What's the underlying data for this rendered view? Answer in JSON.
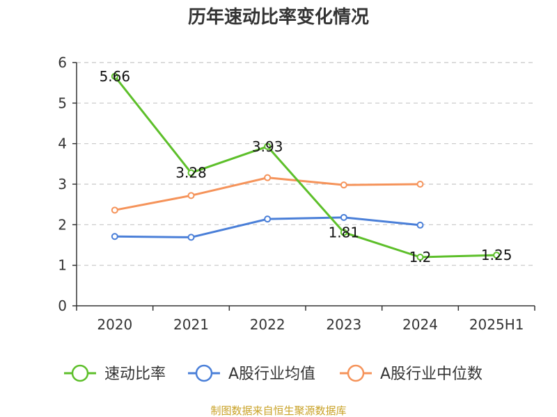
{
  "chart_data": {
    "type": "line",
    "title": "历年速动比率变化情况",
    "categories": [
      "2020",
      "2021",
      "2022",
      "2023",
      "2024",
      "2025H1"
    ],
    "ylim": [
      0,
      6
    ],
    "yticks": [
      0,
      1,
      2,
      3,
      4,
      5,
      6
    ],
    "grid": true,
    "legend_position": "bottom",
    "series": [
      {
        "name": "速动比率",
        "color": "#5dbf2a",
        "values": [
          5.66,
          3.28,
          3.93,
          1.81,
          1.2,
          1.25
        ],
        "labels": [
          "5.66",
          "3.28",
          "3.93",
          "1.81",
          "1.2",
          "1.25"
        ]
      },
      {
        "name": "A股行业均值",
        "color": "#4a7fd8",
        "values": [
          1.71,
          1.69,
          2.14,
          2.18,
          1.99,
          null
        ]
      },
      {
        "name": "A股行业中位数",
        "color": "#f5935a",
        "values": [
          2.36,
          2.72,
          3.16,
          2.98,
          3.0,
          null
        ]
      }
    ],
    "source": "制图数据来自恒生聚源数据库"
  }
}
